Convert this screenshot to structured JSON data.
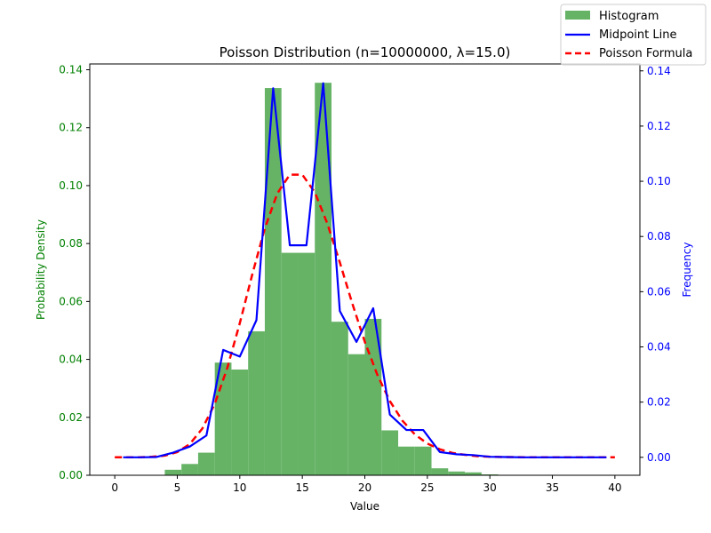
{
  "chart_data": {
    "type": "bar",
    "title": "Poisson Distribution (n=10000000, λ=15.0)",
    "xlabel": "Value",
    "ylabel_left": "Probability Density",
    "ylabel_right": "Frequency",
    "xlim": [
      -2,
      42
    ],
    "ylim_left": [
      0,
      0.142
    ],
    "ylim_right": [
      -0.0065,
      0.1425
    ],
    "x_ticks": [
      0,
      5,
      10,
      15,
      20,
      25,
      30,
      35,
      40
    ],
    "y_ticks_left": [
      0.0,
      0.02,
      0.04,
      0.06,
      0.08,
      0.1,
      0.12,
      0.14
    ],
    "y_ticks_left_labels": [
      "0.00",
      "0.02",
      "0.04",
      "0.06",
      "0.08",
      "0.10",
      "0.12",
      "0.14"
    ],
    "y_ticks_right": [
      0.0,
      0.02,
      0.04,
      0.06,
      0.08,
      0.1,
      0.12,
      0.14
    ],
    "y_ticks_right_labels": [
      "0.00",
      "0.02",
      "0.04",
      "0.06",
      "0.08",
      "0.10",
      "0.12",
      "0.14"
    ],
    "colors": {
      "histogram": "#66b366",
      "midpoint_line": "#0000ff",
      "poisson_formula": "#ff0000",
      "left_axis": "#008000",
      "right_axis": "#0000ff"
    },
    "legend": {
      "position": "top-right",
      "entries": [
        "Histogram",
        "Midpoint Line",
        "Poisson Formula"
      ]
    },
    "series": [
      {
        "name": "Histogram",
        "kind": "histogram",
        "bins": [
          {
            "x0": 0,
            "x1": 1.333,
            "value": 0.0
          },
          {
            "x0": 1.333,
            "x1": 2.667,
            "value": 0.0
          },
          {
            "x0": 2.667,
            "x1": 4.0,
            "value": 0.0
          },
          {
            "x0": 4.0,
            "x1": 5.333,
            "value": 0.0019
          },
          {
            "x0": 5.333,
            "x1": 6.667,
            "value": 0.0039
          },
          {
            "x0": 6.667,
            "x1": 8.0,
            "value": 0.0078
          },
          {
            "x0": 8.0,
            "x1": 9.333,
            "value": 0.0389
          },
          {
            "x0": 9.333,
            "x1": 10.667,
            "value": 0.0365
          },
          {
            "x0": 10.667,
            "x1": 12.0,
            "value": 0.0497
          },
          {
            "x0": 12.0,
            "x1": 13.333,
            "value": 0.1337
          },
          {
            "x0": 13.333,
            "x1": 14.667,
            "value": 0.0768
          },
          {
            "x0": 14.667,
            "x1": 16.0,
            "value": 0.0768
          },
          {
            "x0": 16.0,
            "x1": 17.333,
            "value": 0.1355
          },
          {
            "x0": 17.333,
            "x1": 18.667,
            "value": 0.053
          },
          {
            "x0": 18.667,
            "x1": 20.0,
            "value": 0.0418
          },
          {
            "x0": 20.0,
            "x1": 21.333,
            "value": 0.054
          },
          {
            "x0": 21.333,
            "x1": 22.667,
            "value": 0.0155
          },
          {
            "x0": 22.667,
            "x1": 24.0,
            "value": 0.0099
          },
          {
            "x0": 24.0,
            "x1": 25.333,
            "value": 0.0099
          },
          {
            "x0": 25.333,
            "x1": 26.667,
            "value": 0.0024
          },
          {
            "x0": 26.667,
            "x1": 28.0,
            "value": 0.0013
          },
          {
            "x0": 28.0,
            "x1": 29.333,
            "value": 0.001
          },
          {
            "x0": 29.333,
            "x1": 30.667,
            "value": 0.0003
          }
        ]
      },
      {
        "name": "Midpoint Line",
        "kind": "line",
        "axis": "right",
        "x": [
          0.67,
          2.0,
          3.33,
          4.67,
          6.0,
          7.33,
          8.67,
          10.0,
          11.33,
          12.67,
          14.0,
          15.33,
          16.67,
          18.0,
          19.33,
          20.67,
          22.0,
          23.33,
          24.67,
          26.0,
          27.33,
          28.67,
          30.0,
          31.33,
          32.67,
          34.0,
          35.33,
          36.67,
          38.0,
          39.33
        ],
        "y": [
          0.0,
          0.0,
          0.0001,
          0.0017,
          0.0039,
          0.0079,
          0.0389,
          0.0365,
          0.0497,
          0.1337,
          0.0768,
          0.0768,
          0.1355,
          0.053,
          0.0418,
          0.054,
          0.0155,
          0.0099,
          0.0099,
          0.0019,
          0.0011,
          0.0008,
          0.0002,
          0.0001,
          0.0,
          0.0,
          0.0,
          0.0,
          0.0,
          0.0
        ]
      },
      {
        "name": "Poisson Formula",
        "kind": "line",
        "axis": "right",
        "style": "dashed",
        "x": [
          0,
          1,
          2,
          3,
          4,
          5,
          6,
          7,
          8,
          9,
          10,
          11,
          12,
          13,
          14,
          15,
          16,
          17,
          18,
          19,
          20,
          21,
          22,
          23,
          24,
          25,
          26,
          27,
          28,
          29,
          30,
          31,
          32,
          33,
          34,
          35,
          36,
          37,
          38,
          39,
          40
        ],
        "y": [
          0.0,
          0.0,
          0.0,
          0.0002,
          0.0006,
          0.0019,
          0.0048,
          0.0104,
          0.0194,
          0.0324,
          0.0486,
          0.0663,
          0.0829,
          0.0956,
          0.1024,
          0.1024,
          0.096,
          0.0847,
          0.0706,
          0.0557,
          0.0418,
          0.0299,
          0.0204,
          0.0133,
          0.0083,
          0.005,
          0.0029,
          0.0016,
          0.0009,
          0.0004,
          0.0002,
          0.0001,
          0.0001,
          0.0,
          0.0,
          0.0,
          0.0,
          0.0,
          0.0,
          0.0,
          0.0
        ]
      }
    ]
  }
}
